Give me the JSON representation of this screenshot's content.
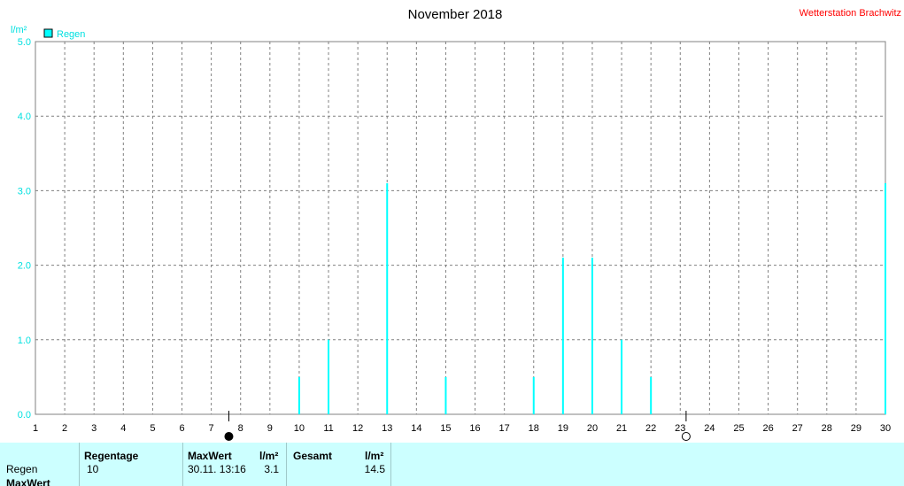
{
  "chart_data": {
    "type": "bar",
    "title": "November 2018",
    "station": "Wetterstation Brachwitz",
    "ylabel": "l/m²",
    "ylim": [
      0,
      5
    ],
    "yticks": [
      "0.0",
      "1.0",
      "2.0",
      "3.0",
      "4.0",
      "5.0"
    ],
    "categories": [
      "1",
      "2",
      "3",
      "4",
      "5",
      "6",
      "7",
      "8",
      "9",
      "10",
      "11",
      "12",
      "13",
      "14",
      "15",
      "16",
      "17",
      "18",
      "19",
      "20",
      "21",
      "22",
      "23",
      "24",
      "25",
      "26",
      "27",
      "28",
      "29",
      "30"
    ],
    "series": [
      {
        "name": "Regen",
        "color": "#00ffff",
        "values": [
          0,
          0,
          0,
          0,
          0,
          0,
          0,
          0,
          0,
          0.5,
          1.0,
          0,
          3.1,
          0,
          0.5,
          0,
          0,
          0.5,
          2.1,
          2.1,
          1.0,
          0.5,
          0,
          0,
          0,
          0,
          0,
          0,
          0,
          3.1
        ]
      }
    ],
    "moon_phases": [
      {
        "type": "new-moon",
        "day": 7.6
      },
      {
        "type": "full-moon",
        "day": 23.2
      }
    ],
    "grid": true,
    "legend": "top-left",
    "colors": {
      "axis_text": "#00e0e0",
      "station": "#ff0000",
      "grid": "#808080"
    }
  },
  "summary": {
    "row_label": "Regen",
    "row_label2": "MaxWert",
    "regentage_header": "Regentage",
    "regentage_value": "10",
    "maxwert_header": "MaxWert",
    "maxwert_unit": "l/m²",
    "maxwert_date": "30.11.  13:16",
    "maxwert_value": "3.1",
    "gesamt_header": "Gesamt",
    "gesamt_unit": "l/m²",
    "gesamt_value": "14.5"
  }
}
